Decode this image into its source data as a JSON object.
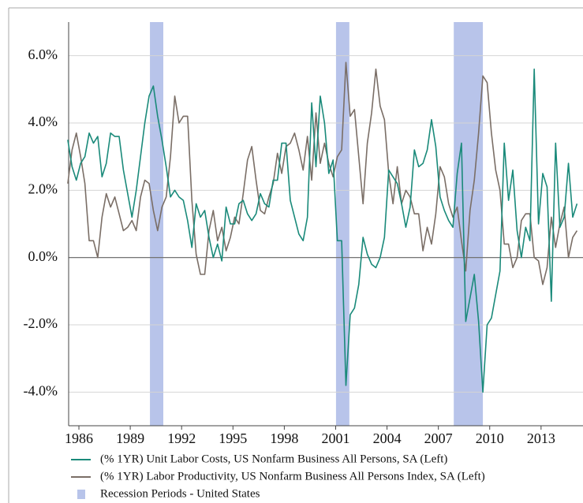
{
  "chart_data": {
    "type": "line",
    "x": [
      1985.35,
      1985.6,
      1985.85,
      1986.1,
      1986.35,
      1986.6,
      1986.85,
      1987.1,
      1987.35,
      1987.6,
      1987.85,
      1988.1,
      1988.35,
      1988.6,
      1988.85,
      1989.1,
      1989.35,
      1989.6,
      1989.85,
      1990.1,
      1990.35,
      1990.6,
      1990.85,
      1991.1,
      1991.35,
      1991.6,
      1991.85,
      1992.1,
      1992.35,
      1992.6,
      1992.85,
      1993.1,
      1993.35,
      1993.6,
      1993.85,
      1994.1,
      1994.35,
      1994.6,
      1994.85,
      1995.1,
      1995.35,
      1995.6,
      1995.85,
      1996.1,
      1996.35,
      1996.6,
      1996.85,
      1997.1,
      1997.35,
      1997.6,
      1997.85,
      1998.1,
      1998.35,
      1998.6,
      1998.85,
      1999.1,
      1999.35,
      1999.6,
      1999.85,
      2000.1,
      2000.35,
      2000.6,
      2000.85,
      2001.1,
      2001.35,
      2001.6,
      2001.85,
      2002.1,
      2002.35,
      2002.6,
      2002.85,
      2003.1,
      2003.35,
      2003.6,
      2003.85,
      2004.1,
      2004.35,
      2004.6,
      2004.85,
      2005.1,
      2005.35,
      2005.6,
      2005.85,
      2006.1,
      2006.35,
      2006.6,
      2006.85,
      2007.1,
      2007.35,
      2007.6,
      2007.85,
      2008.1,
      2008.35,
      2008.6,
      2008.85,
      2009.1,
      2009.35,
      2009.6,
      2009.85,
      2010.1,
      2010.35,
      2010.6,
      2010.85,
      2011.1,
      2011.35,
      2011.6,
      2011.85,
      2012.1,
      2012.35,
      2012.6,
      2012.85,
      2013.1,
      2013.35,
      2013.6,
      2013.85,
      2014.1,
      2014.35,
      2014.6,
      2014.85,
      2015.1
    ],
    "series": [
      {
        "name": "(% 1YR) Unit Labor Costs, US Nonfarm Business All Persons, SA (Left)",
        "color": "#1a8a7a",
        "values": [
          3.5,
          2.7,
          2.3,
          2.8,
          3.0,
          3.7,
          3.4,
          3.6,
          2.4,
          2.8,
          3.7,
          3.6,
          3.6,
          2.6,
          1.9,
          1.2,
          2.0,
          3.0,
          4.0,
          4.8,
          5.1,
          4.2,
          3.5,
          2.7,
          1.8,
          2.0,
          1.8,
          1.7,
          1.1,
          0.3,
          1.6,
          1.2,
          1.4,
          0.6,
          0.0,
          0.4,
          -0.1,
          1.5,
          1.0,
          1.0,
          1.6,
          1.7,
          1.3,
          1.1,
          1.3,
          1.9,
          1.6,
          1.5,
          2.3,
          2.3,
          3.4,
          3.4,
          1.7,
          1.2,
          0.7,
          0.5,
          1.2,
          4.6,
          2.7,
          4.8,
          4.0,
          2.5,
          2.9,
          0.5,
          0.5,
          -3.8,
          -1.7,
          -1.5,
          -0.8,
          0.6,
          0.1,
          -0.2,
          -0.3,
          0.0,
          0.6,
          2.6,
          2.4,
          2.2,
          1.6,
          0.9,
          1.5,
          3.2,
          2.7,
          2.8,
          3.2,
          4.1,
          3.3,
          1.8,
          1.4,
          1.1,
          0.9,
          2.5,
          3.4,
          -1.9,
          -1.2,
          -0.5,
          -1.9,
          -4.0,
          -2.0,
          -1.8,
          -1.1,
          -0.4,
          3.4,
          1.7,
          2.6,
          0.8,
          0.0,
          0.9,
          0.5,
          5.6,
          1.0,
          2.5,
          2.1,
          -1.3,
          3.4,
          0.9,
          1.2,
          2.8,
          1.2,
          1.6
        ]
      },
      {
        "name": "(% 1YR) Labor Productivity, US Nonfarm Business All Persons Index, SA (Left)",
        "color": "#7a6e66",
        "values": [
          2.2,
          3.2,
          3.7,
          3.0,
          2.2,
          0.5,
          0.5,
          0.0,
          1.2,
          1.9,
          1.5,
          1.8,
          1.3,
          0.8,
          0.9,
          1.1,
          0.8,
          1.8,
          2.3,
          2.2,
          1.4,
          0.8,
          1.5,
          1.8,
          3.0,
          4.8,
          4.0,
          4.2,
          4.2,
          1.7,
          0.1,
          -0.5,
          -0.5,
          0.8,
          1.4,
          0.5,
          0.9,
          0.2,
          0.6,
          1.2,
          1.0,
          1.9,
          2.9,
          3.3,
          2.3,
          1.4,
          1.3,
          1.8,
          2.2,
          3.1,
          2.5,
          3.3,
          3.4,
          3.7,
          3.2,
          2.6,
          3.6,
          2.3,
          4.3,
          2.8,
          3.4,
          2.8,
          2.4,
          3.0,
          3.2,
          5.8,
          4.2,
          4.4,
          3.0,
          1.6,
          3.4,
          4.3,
          5.6,
          4.5,
          4.1,
          2.5,
          1.6,
          2.7,
          1.6,
          2.0,
          1.8,
          1.3,
          1.3,
          0.2,
          0.9,
          0.4,
          1.3,
          2.7,
          2.4,
          1.6,
          1.2,
          1.5,
          0.5,
          -0.4,
          1.4,
          2.3,
          3.7,
          5.4,
          5.2,
          3.7,
          2.6,
          2.0,
          0.4,
          0.4,
          -0.3,
          0.0,
          1.1,
          1.3,
          1.3,
          0.0,
          -0.1,
          -0.8,
          -0.3,
          1.2,
          0.3,
          1.0,
          1.5,
          0.0,
          0.6,
          0.8
        ]
      }
    ],
    "recessions": {
      "name": "Recession Periods - United States",
      "color": "#b8c4ea",
      "spans": [
        [
          1990.15,
          1990.93
        ],
        [
          2001.02,
          2001.8
        ],
        [
          2007.9,
          2009.6
        ]
      ]
    },
    "xlim": [
      1985.4,
      2015.45
    ],
    "xticks": [
      1986,
      1989,
      1992,
      1995,
      1998,
      2001,
      2004,
      2007,
      2010,
      2013
    ],
    "ylim": [
      -5,
      7
    ],
    "yticks": [
      {
        "value": -4,
        "label": "-4.0%"
      },
      {
        "value": -2,
        "label": "-2.0%"
      },
      {
        "value": 0,
        "label": "0.0%"
      },
      {
        "value": 2,
        "label": "2.0%"
      },
      {
        "value": 4,
        "label": "4.0%"
      },
      {
        "value": 6,
        "label": "6.0%"
      }
    ],
    "grid": true
  }
}
